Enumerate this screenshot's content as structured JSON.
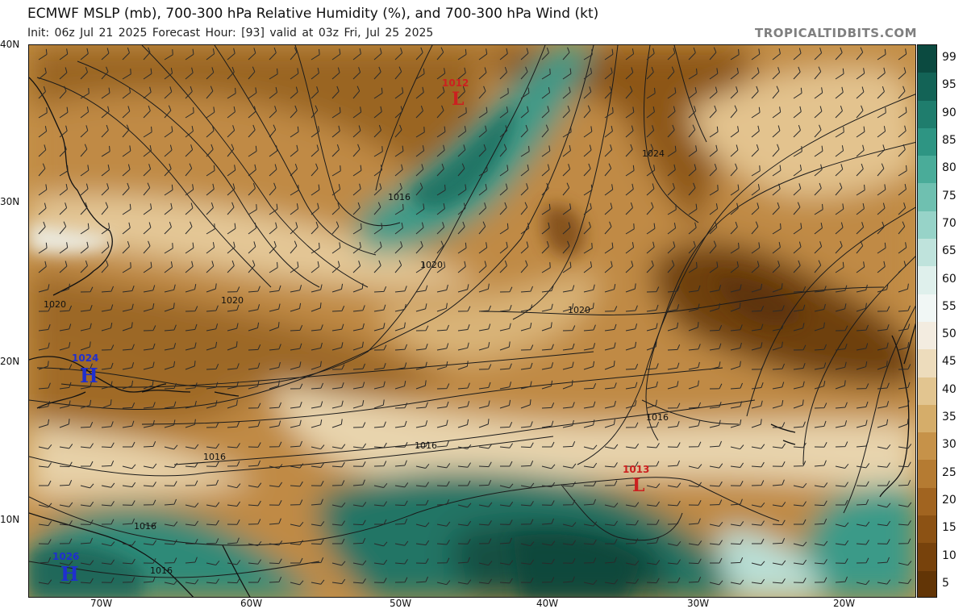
{
  "header": {
    "title": "ECMWF MSLP (mb), 700-300 hPa Relative Humidity (%), and 700-300 hPa Wind (kt)",
    "subtitle": "Init: 06z Jul 21 2025   Forecast Hour: [93]   valid at 03z Fri, Jul 25 2025",
    "credit": "TROPICALTIDBITS.COM"
  },
  "axes": {
    "lat_labels": [
      "40N",
      "30N",
      "20N",
      "10N"
    ],
    "lon_labels": [
      "70W",
      "60W",
      "50W",
      "40W",
      "30W",
      "20W"
    ]
  },
  "colorbar": {
    "labels": [
      "99",
      "95",
      "90",
      "85",
      "80",
      "75",
      "70",
      "65",
      "60",
      "55",
      "50",
      "45",
      "40",
      "35",
      "30",
      "25",
      "20",
      "15",
      "10",
      "5"
    ],
    "colors": [
      "#0b4a40",
      "#136356",
      "#1f7d6d",
      "#2e9583",
      "#4aac99",
      "#6fc0b0",
      "#97d3c8",
      "#bfe3dc",
      "#dff0ec",
      "#f1f7f5",
      "#f3ece0",
      "#eddcbc",
      "#e2c590",
      "#d5ad6a",
      "#c69249",
      "#b57b32",
      "#a16420",
      "#8c5214",
      "#77420c",
      "#623506"
    ]
  },
  "pressure_centers": [
    {
      "letter": "L",
      "value": "1012",
      "color": "#cc2020"
    },
    {
      "letter": "L",
      "value": "1013",
      "color": "#cc2020"
    },
    {
      "letter": "H",
      "value": "1024",
      "color": "#1f2fd0"
    },
    {
      "letter": "H",
      "value": "1026",
      "color": "#1f2fd0"
    }
  ],
  "isobar_labels": [
    "1024",
    "1016",
    "1020",
    "1020",
    "1020",
    "1020",
    "1016",
    "1016",
    "1016",
    "1016",
    "1016"
  ],
  "colors": {
    "isobar": "#1a1a1a",
    "barb": "#2a2a2a",
    "coast": "#111111"
  }
}
